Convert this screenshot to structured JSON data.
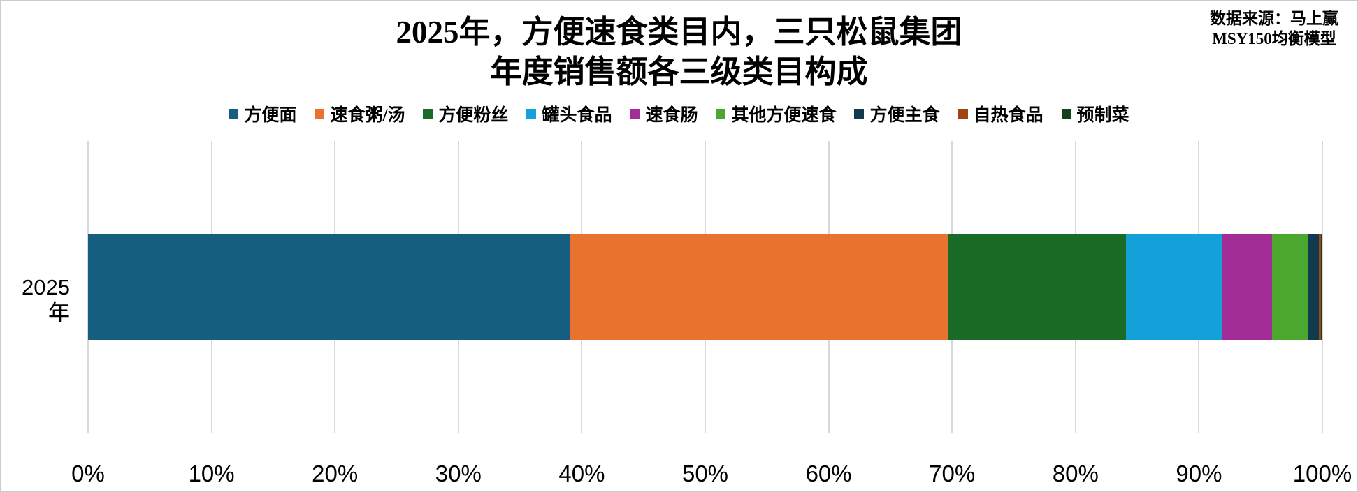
{
  "header": {
    "title_line1": "2025年，方便速食类目内，三只松鼠集团",
    "title_line2": "年度销售额各三级类目构成",
    "source_line1": "数据来源：马上赢",
    "source_line2": "MSY150均衡模型"
  },
  "y_axis": {
    "category_label": "2025年"
  },
  "chart_data": {
    "type": "bar",
    "orientation": "horizontal",
    "stacked": true,
    "title": "2025年，方便速食类目内，三只松鼠集团年度销售额各三级类目构成",
    "categories": [
      "2025年"
    ],
    "series": [
      {
        "name": "方便面",
        "color": "#165E7F",
        "values": [
          39.0
        ]
      },
      {
        "name": "速食粥/汤",
        "color": "#E8732F",
        "values": [
          30.7
        ]
      },
      {
        "name": "方便粉丝",
        "color": "#1A6B26",
        "values": [
          14.4
        ]
      },
      {
        "name": "罐头食品",
        "color": "#14A0D8",
        "values": [
          7.8
        ]
      },
      {
        "name": "速食肠",
        "color": "#A32D96",
        "values": [
          4.0
        ]
      },
      {
        "name": "其他方便速食",
        "color": "#4CA72E",
        "values": [
          2.9
        ]
      },
      {
        "name": "方便主食",
        "color": "#11394F",
        "values": [
          0.9
        ]
      },
      {
        "name": "自热食品",
        "color": "#A34513",
        "values": [
          0.2
        ]
      },
      {
        "name": "预制菜",
        "color": "#15421E",
        "values": [
          0.1
        ]
      }
    ],
    "x_axis": {
      "min": 0,
      "max": 100,
      "tick_step": 10,
      "tick_labels": [
        "0%",
        "10%",
        "20%",
        "30%",
        "40%",
        "50%",
        "60%",
        "70%",
        "80%",
        "90%",
        "100%"
      ],
      "units": "%"
    },
    "grid": true,
    "gridline_color": "#d9d9d9",
    "legend_position": "top"
  }
}
